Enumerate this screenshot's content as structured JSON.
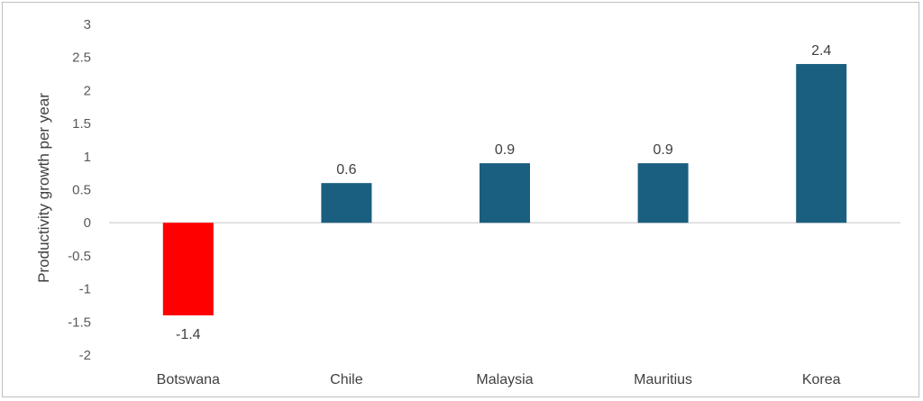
{
  "chart_data": {
    "type": "bar",
    "title": "",
    "xlabel": "",
    "ylabel": "Productivity growth per year",
    "categories": [
      "Botswana",
      "Chile",
      "Malaysia",
      "Mauritius",
      "Korea"
    ],
    "values": [
      -1.4,
      0.6,
      0.9,
      0.9,
      2.4
    ],
    "data_labels": [
      "-1.4",
      "0.6",
      "0.9",
      "0.9",
      "2.4"
    ],
    "ylim": [
      -2,
      3
    ],
    "yticks": [
      3,
      2.5,
      2,
      1.5,
      1,
      0.5,
      0,
      -0.5,
      -1,
      -1.5,
      -2
    ],
    "ytick_labels": [
      "3",
      "2.5",
      "2",
      "1.5",
      "1",
      "0.5",
      "0",
      "-0.5",
      "-1",
      "-1.5",
      "-2"
    ],
    "grid": false,
    "legend": "none",
    "colors": {
      "positive": "#1a5e80",
      "negative": "#ff0000",
      "axis": "#d9d9d9"
    }
  }
}
